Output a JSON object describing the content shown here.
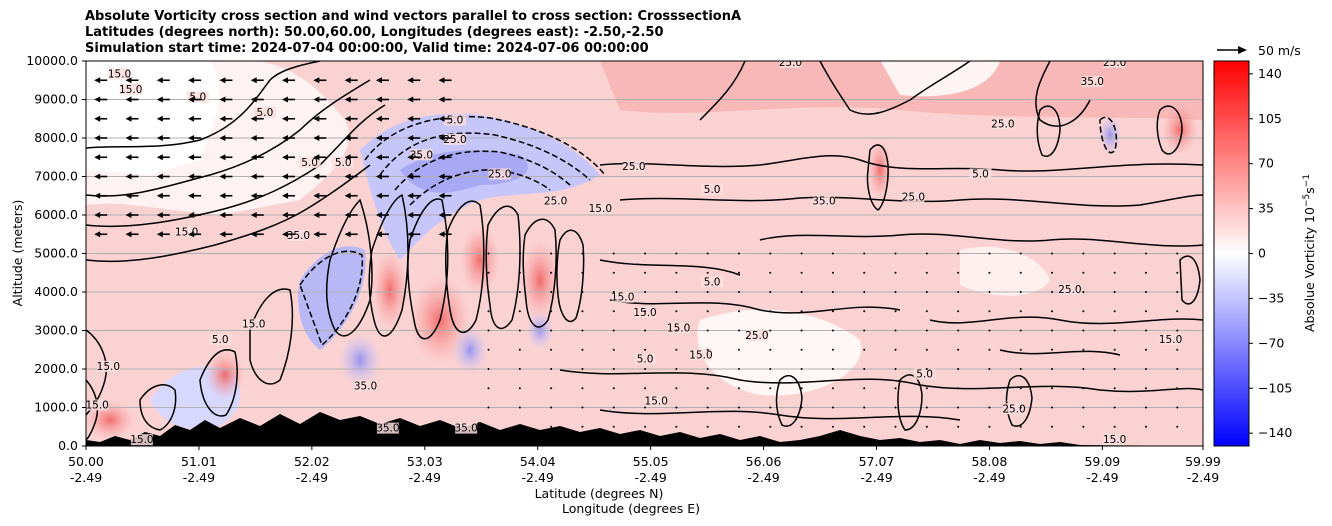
{
  "title_lines": [
    "Absolute Vorticity cross section and wind vectors parallel to cross section: CrosssectionA",
    "Latitudes (degrees north): 50.00,60.00, Longitudes (degrees east): -2.50,-2.50",
    "Simulation start time: 2024-07-04 00:00:00, Valid time: 2024-07-06 00:00:00"
  ],
  "chart_data": {
    "type": "heatmap",
    "title": "Absolute Vorticity cross section and wind vectors parallel to cross section: CrosssectionA",
    "xlabel": "Latitude (degrees N)",
    "xlabel2": "Longitude (degrees E)",
    "ylabel": "Altitude (meters)",
    "ylim": [
      0,
      10000
    ],
    "xlim": [
      50.0,
      59.99
    ],
    "x_ticks": [
      {
        "lat": "50.00",
        "lon": "-2.49",
        "value": 50.0
      },
      {
        "lat": "51.01",
        "lon": "-2.49",
        "value": 51.01
      },
      {
        "lat": "52.02",
        "lon": "-2.49",
        "value": 52.02
      },
      {
        "lat": "53.03",
        "lon": "-2.49",
        "value": 53.03
      },
      {
        "lat": "54.04",
        "lon": "-2.49",
        "value": 54.04
      },
      {
        "lat": "55.05",
        "lon": "-2.49",
        "value": 55.05
      },
      {
        "lat": "56.06",
        "lon": "-2.49",
        "value": 56.06
      },
      {
        "lat": "57.07",
        "lon": "-2.49",
        "value": 57.07
      },
      {
        "lat": "58.08",
        "lon": "-2.49",
        "value": 58.08
      },
      {
        "lat": "59.09",
        "lon": "-2.49",
        "value": 59.09
      },
      {
        "lat": "59.99",
        "lon": "-2.49",
        "value": 59.99
      }
    ],
    "y_ticks": [
      "0.0",
      "1000.0",
      "2000.0",
      "3000.0",
      "4000.0",
      "5000.0",
      "6000.0",
      "7000.0",
      "8000.0",
      "9000.0",
      "10000.0"
    ],
    "y_tick_values": [
      0,
      1000,
      2000,
      3000,
      4000,
      5000,
      6000,
      7000,
      8000,
      9000,
      10000
    ],
    "grid": "horizontal",
    "colorbar": {
      "label": "Absolue Vorticity 10",
      "label_exp": "−5",
      "label_unit": "s",
      "label_unit_exp": "−1",
      "range": [
        -150,
        150
      ],
      "ticks": [
        "140",
        "105",
        "70",
        "35",
        "0",
        "−35",
        "−70",
        "−105",
        "−140"
      ],
      "tick_values": [
        140,
        105,
        70,
        35,
        0,
        -35,
        -70,
        -105,
        -140
      ],
      "colormap": "bwr",
      "colors": {
        "low": "#0000ff",
        "mid": "#ffffff",
        "high": "#ff0000"
      }
    },
    "quiver_key": {
      "label": "50 m/s"
    },
    "contour_levels": [
      "5.0",
      "15.0",
      "25.0",
      "35.0"
    ],
    "wind_vectors_upper": {
      "direction": "left",
      "altitudes": [
        5500,
        6000,
        6500,
        7000,
        7500,
        8000,
        8500,
        9000,
        9500
      ],
      "lat_range": [
        50.0,
        53.4
      ]
    }
  }
}
